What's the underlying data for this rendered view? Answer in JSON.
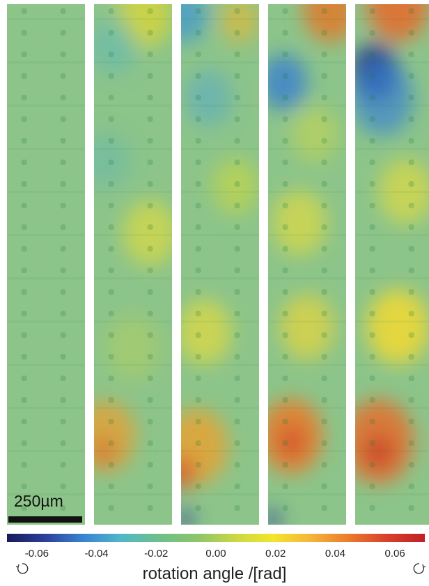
{
  "figure": {
    "panels": [
      {
        "id": 1,
        "field": "flat"
      },
      {
        "id": 2,
        "field": "weak"
      },
      {
        "id": 3,
        "field": "medium"
      },
      {
        "id": 4,
        "field": "strong"
      },
      {
        "id": 5,
        "field": "strongest"
      }
    ],
    "scale_bar": {
      "label": "250µm"
    },
    "colorbar": {
      "title": "rotation angle /[rad]",
      "ticks": [
        "-0.06",
        "-0.04",
        "-0.02",
        "0.00",
        "0.02",
        "0.04",
        "0.06"
      ],
      "range": [
        -0.07,
        0.07
      ],
      "colors": [
        "#1a1a5a",
        "#2b3f9a",
        "#3a83d0",
        "#4fb8c8",
        "#6fbf8a",
        "#8cc46a",
        "#c9d842",
        "#f2e62a",
        "#f6b43a",
        "#ea7b2c",
        "#d8402a",
        "#c11f2a"
      ]
    },
    "rotation_icons": [
      "counterclockwise-arrow",
      "clockwise-arrow"
    ]
  }
}
